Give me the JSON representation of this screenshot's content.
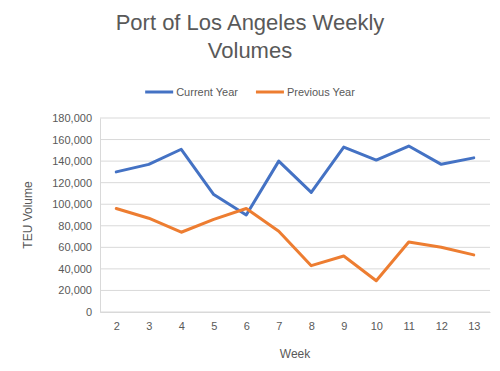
{
  "chart_data": {
    "type": "line",
    "title": "Port of Los Angeles Weekly Volumes",
    "x_label": "Week",
    "y_label": "TEU Volume",
    "categories": [
      "2",
      "3",
      "4",
      "5",
      "6",
      "7",
      "8",
      "9",
      "10",
      "11",
      "12",
      "13"
    ],
    "series": [
      {
        "name": "Current Year",
        "color": "#4472c4",
        "values": [
          130000,
          137000,
          151000,
          109000,
          90000,
          140000,
          111000,
          153000,
          141000,
          154000,
          137000,
          143000
        ]
      },
      {
        "name": "Previous Year",
        "color": "#ed7d31",
        "values": [
          96000,
          87000,
          74000,
          86000,
          96000,
          75000,
          43000,
          52000,
          29000,
          65000,
          60000,
          53000
        ]
      }
    ],
    "ylim": [
      0,
      180000
    ],
    "yticks": [
      0,
      {
        "value": 20000,
        "label": "20,000"
      },
      {
        "value": 40000,
        "label": "40,000"
      },
      {
        "value": 60000,
        "label": "60,000"
      },
      {
        "value": 80000,
        "label": "80,000"
      },
      {
        "value": 100000,
        "label": "100,000"
      },
      {
        "value": 120000,
        "label": "120,000"
      },
      {
        "value": 140000,
        "label": "140,000"
      },
      {
        "value": 160000,
        "label": "160,000"
      },
      {
        "value": 180000,
        "label": "180,000"
      }
    ],
    "grid": true,
    "legend": "top"
  }
}
